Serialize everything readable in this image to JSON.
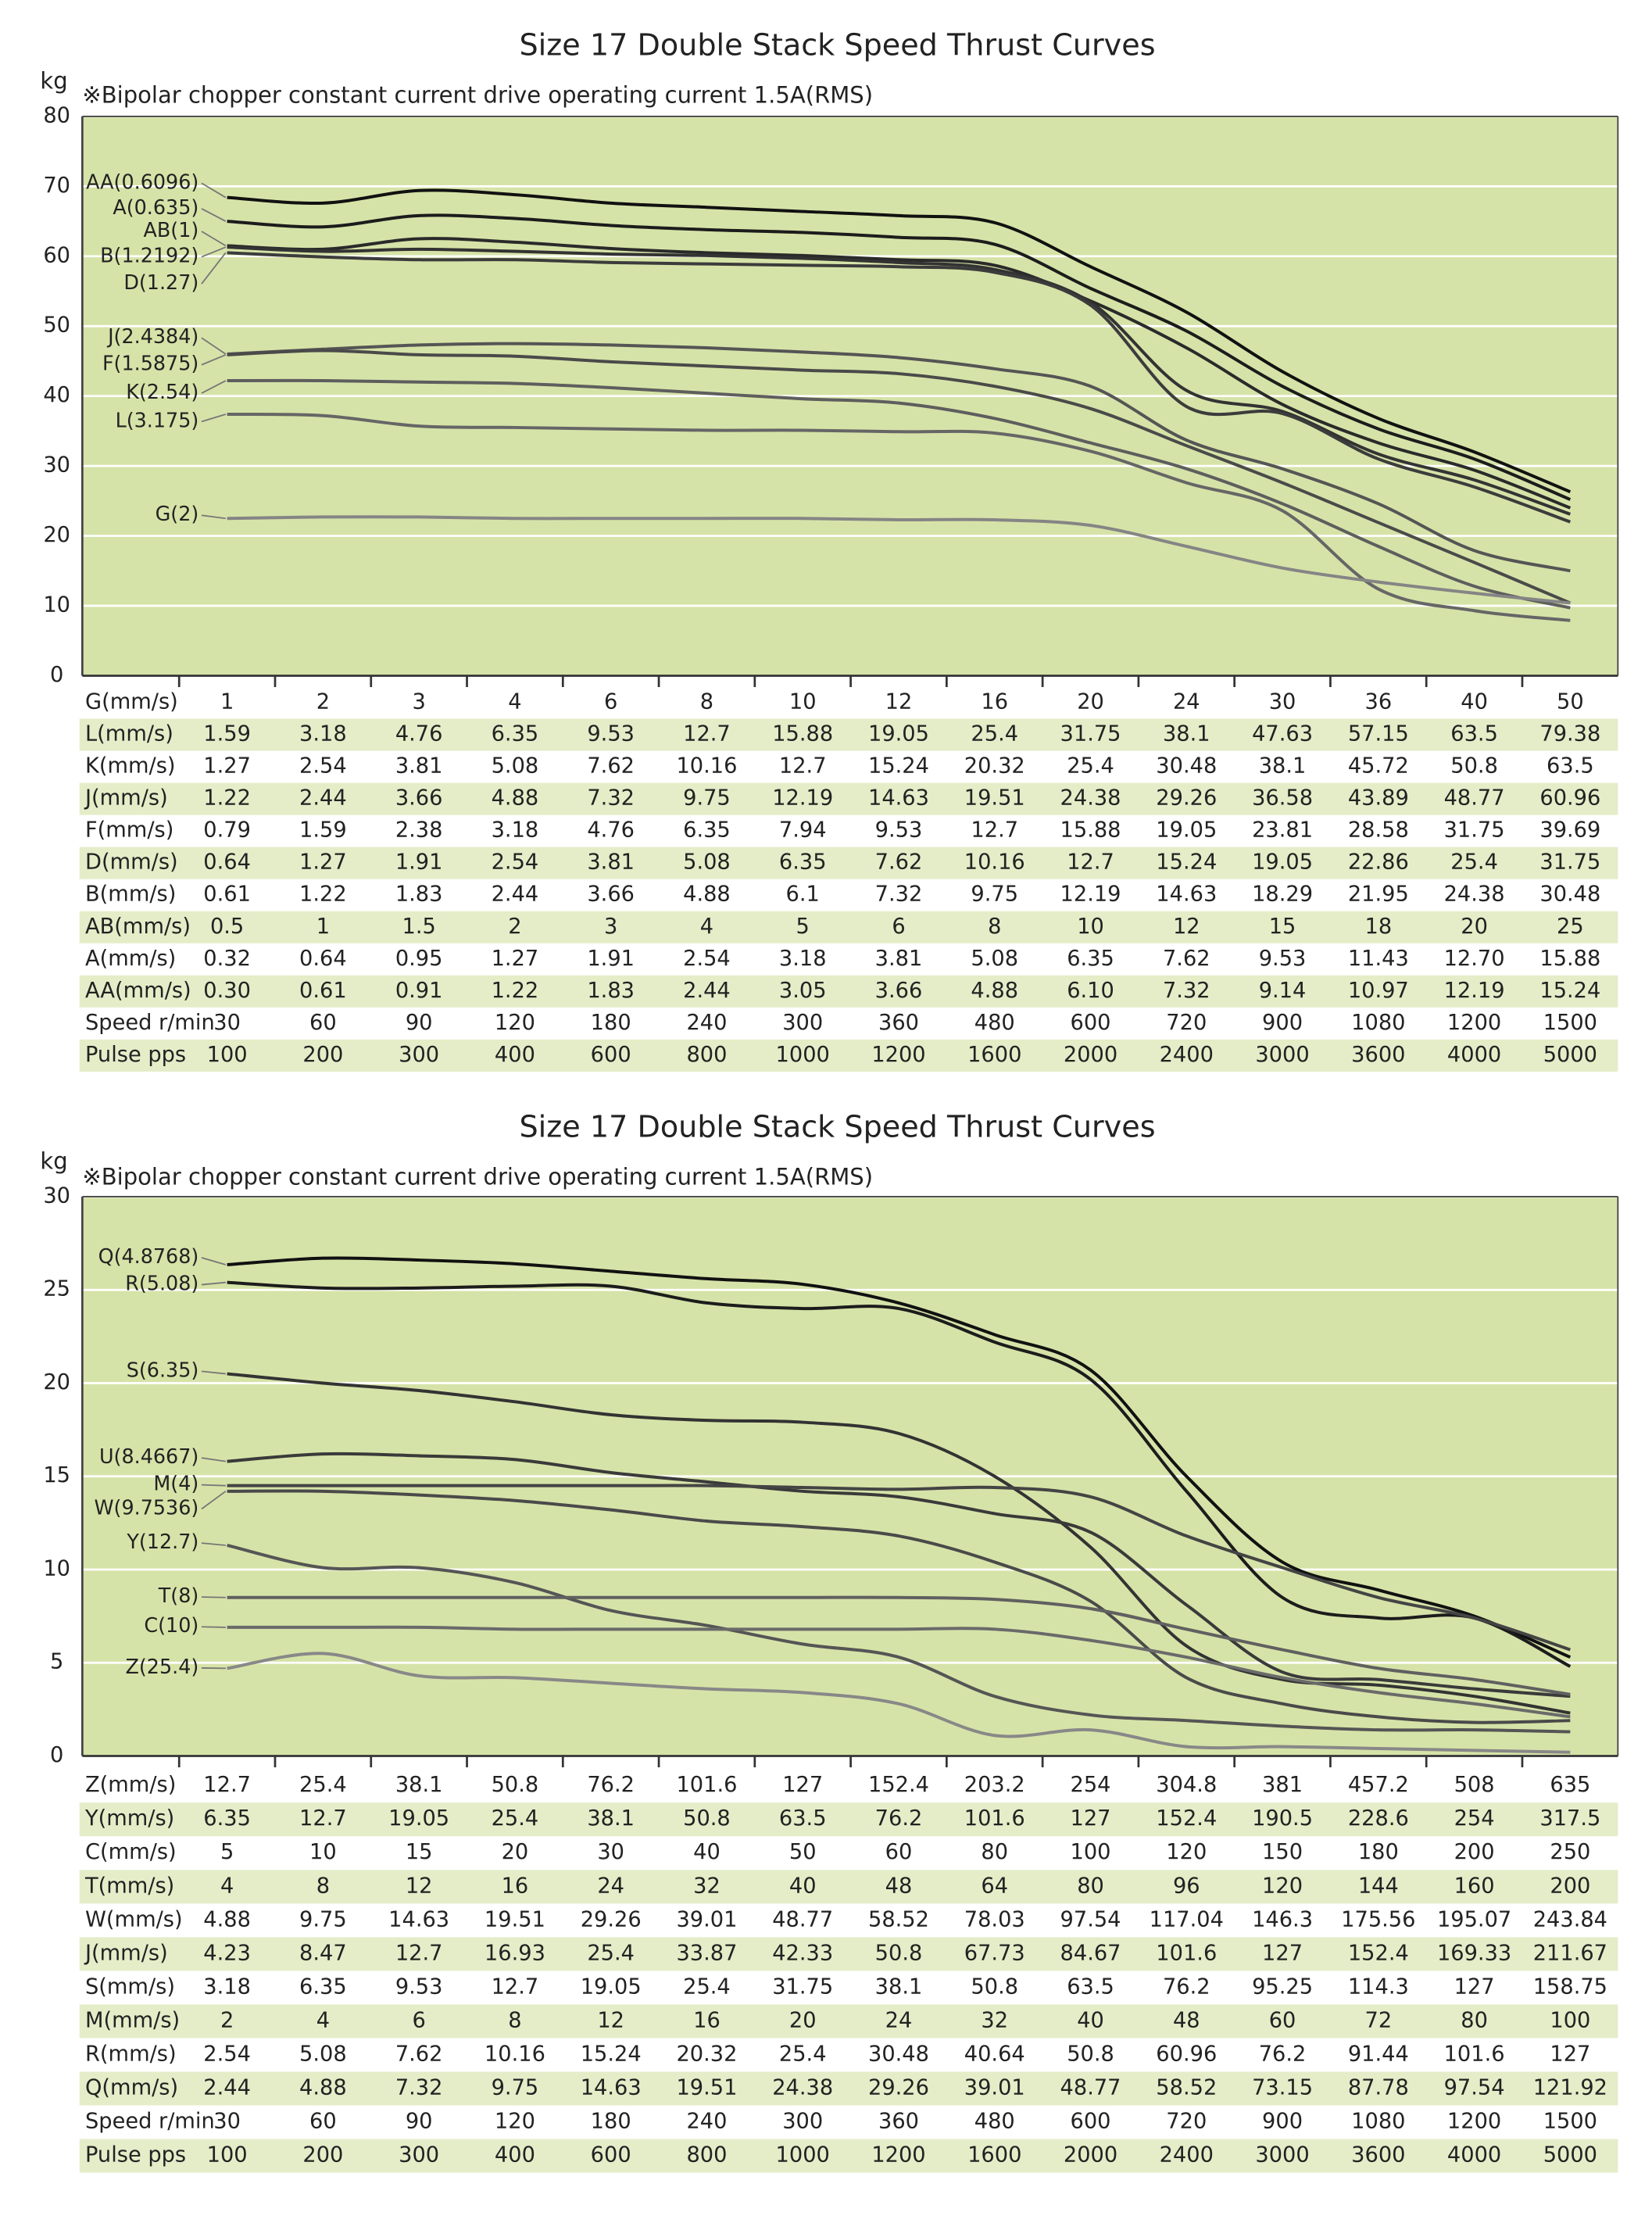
{
  "chart_data": [
    {
      "type": "line",
      "title": "Size 17 Double Stack Speed Thrust Curves",
      "subtitle": "※Bipolar chopper constant current drive operating current 1.5A(RMS)",
      "y_label": "kg",
      "ylim": [
        0,
        80
      ],
      "yticks": [
        0,
        10,
        20,
        30,
        40,
        50,
        60,
        70,
        80
      ],
      "grid": true,
      "series": [
        {
          "name": "AA(0.6096)",
          "color": "#111111",
          "values": [
            68.4,
            67.6,
            69.4,
            68.8,
            67.6,
            67,
            66.4,
            65.8,
            64.8,
            58.5,
            52,
            43.5,
            36.8,
            32,
            26.3
          ]
        },
        {
          "name": "A(0.635)",
          "color": "#1c1c1c",
          "values": [
            65,
            64.2,
            65.8,
            65.4,
            64.4,
            63.8,
            63.4,
            62.7,
            61.7,
            55.4,
            49.3,
            41.4,
            35.3,
            31,
            25.2
          ]
        },
        {
          "name": "AB(1)",
          "color": "#2a2a2a",
          "values": [
            61.5,
            61,
            62.5,
            62,
            61.1,
            60.5,
            60.1,
            59.5,
            58.7,
            53.6,
            46.9,
            38.8,
            33.3,
            29.4,
            24
          ]
        },
        {
          "name": "B(1.2192)",
          "color": "#333333",
          "values": [
            61.3,
            60.7,
            61,
            60.7,
            60.3,
            60.1,
            59.7,
            59.1,
            58.1,
            53.4,
            40.8,
            37.8,
            31.7,
            28,
            23.1
          ]
        },
        {
          "name": "D(1.27)",
          "color": "#3c3c3c",
          "values": [
            60.5,
            59.9,
            59.5,
            59.5,
            59.1,
            58.9,
            58.7,
            58.5,
            57.7,
            53,
            38.5,
            37.5,
            31,
            27,
            22
          ]
        },
        {
          "name": "J(2.4384)",
          "color": "#555555",
          "values": [
            46,
            46.7,
            47.3,
            47.5,
            47.3,
            46.9,
            46.3,
            45.5,
            43.9,
            41.4,
            33.7,
            29.6,
            24.6,
            17.9,
            15
          ]
        },
        {
          "name": "F(1.5875)",
          "color": "#4a4a4a",
          "values": [
            45.9,
            46.5,
            45.9,
            45.7,
            44.9,
            44.3,
            43.7,
            43.2,
            41.4,
            38.2,
            32.9,
            27.6,
            21.9,
            16.2,
            10.4
          ]
        },
        {
          "name": "K(2.54)",
          "color": "#5e5e5e",
          "values": [
            42.2,
            42.2,
            42,
            41.8,
            41.2,
            40.4,
            39.6,
            39,
            36.8,
            33.3,
            29.6,
            24.6,
            18.5,
            12.8,
            9.7
          ]
        },
        {
          "name": "L(3.175)",
          "color": "#666666",
          "values": [
            37.4,
            37.2,
            35.7,
            35.5,
            35.3,
            35.1,
            35.1,
            34.9,
            34.7,
            32.1,
            27.6,
            23.6,
            12.4,
            9.3,
            7.9
          ]
        },
        {
          "name": "G(2)",
          "color": "#858585",
          "values": [
            22.5,
            22.7,
            22.7,
            22.5,
            22.5,
            22.5,
            22.5,
            22.3,
            22.3,
            21.5,
            18.5,
            15.4,
            13.4,
            11.8,
            10.4
          ]
        }
      ],
      "table": {
        "rows": [
          {
            "label": "G(mm/s)",
            "values": [
              "1",
              "2",
              "3",
              "4",
              "6",
              "8",
              "10",
              "12",
              "16",
              "20",
              "24",
              "30",
              "36",
              "40",
              "50"
            ]
          },
          {
            "label": "L(mm/s)",
            "values": [
              "1.59",
              "3.18",
              "4.76",
              "6.35",
              "9.53",
              "12.7",
              "15.88",
              "19.05",
              "25.4",
              "31.75",
              "38.1",
              "47.63",
              "57.15",
              "63.5",
              "79.38"
            ]
          },
          {
            "label": "K(mm/s)",
            "values": [
              "1.27",
              "2.54",
              "3.81",
              "5.08",
              "7.62",
              "10.16",
              "12.7",
              "15.24",
              "20.32",
              "25.4",
              "30.48",
              "38.1",
              "45.72",
              "50.8",
              "63.5"
            ]
          },
          {
            "label": "J(mm/s)",
            "values": [
              "1.22",
              "2.44",
              "3.66",
              "4.88",
              "7.32",
              "9.75",
              "12.19",
              "14.63",
              "19.51",
              "24.38",
              "29.26",
              "36.58",
              "43.89",
              "48.77",
              "60.96"
            ]
          },
          {
            "label": "F(mm/s)",
            "values": [
              "0.79",
              "1.59",
              "2.38",
              "3.18",
              "4.76",
              "6.35",
              "7.94",
              "9.53",
              "12.7",
              "15.88",
              "19.05",
              "23.81",
              "28.58",
              "31.75",
              "39.69"
            ]
          },
          {
            "label": "D(mm/s)",
            "values": [
              "0.64",
              "1.27",
              "1.91",
              "2.54",
              "3.81",
              "5.08",
              "6.35",
              "7.62",
              "10.16",
              "12.7",
              "15.24",
              "19.05",
              "22.86",
              "25.4",
              "31.75"
            ]
          },
          {
            "label": "B(mm/s)",
            "values": [
              "0.61",
              "1.22",
              "1.83",
              "2.44",
              "3.66",
              "4.88",
              "6.1",
              "7.32",
              "9.75",
              "12.19",
              "14.63",
              "18.29",
              "21.95",
              "24.38",
              "30.48"
            ]
          },
          {
            "label": "AB(mm/s)",
            "values": [
              "0.5",
              "1",
              "1.5",
              "2",
              "3",
              "4",
              "5",
              "6",
              "8",
              "10",
              "12",
              "15",
              "18",
              "20",
              "25"
            ]
          },
          {
            "label": "A(mm/s)",
            "values": [
              "0.32",
              "0.64",
              "0.95",
              "1.27",
              "1.91",
              "2.54",
              "3.18",
              "3.81",
              "5.08",
              "6.35",
              "7.62",
              "9.53",
              "11.43",
              "12.70",
              "15.88"
            ]
          },
          {
            "label": "AA(mm/s)",
            "values": [
              "0.30",
              "0.61",
              "0.91",
              "1.22",
              "1.83",
              "2.44",
              "3.05",
              "3.66",
              "4.88",
              "6.10",
              "7.32",
              "9.14",
              "10.97",
              "12.19",
              "15.24"
            ]
          },
          {
            "label": "Speed r/min",
            "values": [
              "30",
              "60",
              "90",
              "120",
              "180",
              "240",
              "300",
              "360",
              "480",
              "600",
              "720",
              "900",
              "1080",
              "1200",
              "1500"
            ]
          },
          {
            "label": "Pulse pps",
            "values": [
              "100",
              "200",
              "300",
              "400",
              "600",
              "800",
              "1000",
              "1200",
              "1600",
              "2000",
              "2400",
              "3000",
              "3600",
              "4000",
              "5000"
            ]
          }
        ]
      }
    },
    {
      "type": "line",
      "title": "Size 17 Double Stack Speed Thrust Curves",
      "subtitle": "※Bipolar chopper constant current drive operating current 1.5A(RMS)",
      "y_label": "kg",
      "ylim": [
        0,
        30
      ],
      "yticks": [
        0,
        5,
        10,
        15,
        20,
        25,
        30
      ],
      "grid": true,
      "series": [
        {
          "name": "Q(4.8768)",
          "color": "#111111",
          "values": [
            26.35,
            26.7,
            26.6,
            26.4,
            26,
            25.6,
            25.3,
            24.3,
            22.6,
            20.7,
            15,
            10.4,
            8.9,
            7.5,
            5.3
          ]
        },
        {
          "name": "R(5.08)",
          "color": "#1c1c1c",
          "values": [
            25.4,
            25.1,
            25.1,
            25.2,
            25.2,
            24.3,
            24,
            24,
            22.2,
            20.2,
            14.2,
            8.5,
            7.4,
            7.4,
            4.8
          ]
        },
        {
          "name": "S(6.35)",
          "color": "#333333",
          "values": [
            20.5,
            20,
            19.6,
            19,
            18.3,
            18,
            17.9,
            17.3,
            15,
            11.2,
            5.9,
            4.1,
            3.8,
            3.2,
            2.3
          ]
        },
        {
          "name": "U(8.4667)",
          "color": "#3a3a3a",
          "values": [
            15.8,
            16.2,
            16.1,
            15.9,
            15.2,
            14.7,
            14.2,
            13.9,
            13,
            12,
            8.1,
            4.5,
            4.1,
            3.6,
            3.2
          ]
        },
        {
          "name": "M(4)",
          "color": "#444444",
          "values": [
            14.5,
            14.5,
            14.5,
            14.5,
            14.5,
            14.5,
            14.4,
            14.3,
            14.4,
            13.9,
            11.8,
            10.1,
            8.5,
            7.4,
            5.7
          ]
        },
        {
          "name": "W(9.7536)",
          "color": "#4a4a4a",
          "values": [
            14.2,
            14.2,
            14,
            13.7,
            13.2,
            12.6,
            12.3,
            11.8,
            10.4,
            8.3,
            4.2,
            2.8,
            2.1,
            1.8,
            1.9
          ]
        },
        {
          "name": "Y(12.7)",
          "color": "#555555",
          "values": [
            11.3,
            10.1,
            10.1,
            9.3,
            7.8,
            7,
            6,
            5.3,
            3.2,
            2.2,
            1.9,
            1.6,
            1.4,
            1.4,
            1.3
          ]
        },
        {
          "name": "T(8)",
          "color": "#606060",
          "values": [
            8.5,
            8.5,
            8.5,
            8.5,
            8.5,
            8.5,
            8.5,
            8.5,
            8.4,
            7.9,
            6.8,
            5.7,
            4.7,
            4.1,
            3.3
          ]
        },
        {
          "name": "C(10)",
          "color": "#6a6a6a",
          "values": [
            6.9,
            6.9,
            6.9,
            6.8,
            6.8,
            6.8,
            6.8,
            6.8,
            6.8,
            6.2,
            5.3,
            4.2,
            3.4,
            2.8,
            2.1
          ]
        },
        {
          "name": "Z(25.4)",
          "color": "#888888",
          "values": [
            4.7,
            5.5,
            4.3,
            4.2,
            3.9,
            3.6,
            3.4,
            2.8,
            1.1,
            1.4,
            0.5,
            0.5,
            0.4,
            0.3,
            0.2
          ]
        }
      ],
      "table": {
        "rows": [
          {
            "label": "Z(mm/s)",
            "values": [
              "12.7",
              "25.4",
              "38.1",
              "50.8",
              "76.2",
              "101.6",
              "127",
              "152.4",
              "203.2",
              "254",
              "304.8",
              "381",
              "457.2",
              "508",
              "635"
            ]
          },
          {
            "label": "Y(mm/s)",
            "values": [
              "6.35",
              "12.7",
              "19.05",
              "25.4",
              "38.1",
              "50.8",
              "63.5",
              "76.2",
              "101.6",
              "127",
              "152.4",
              "190.5",
              "228.6",
              "254",
              "317.5"
            ]
          },
          {
            "label": "C(mm/s)",
            "values": [
              "5",
              "10",
              "15",
              "20",
              "30",
              "40",
              "50",
              "60",
              "80",
              "100",
              "120",
              "150",
              "180",
              "200",
              "250"
            ]
          },
          {
            "label": "T(mm/s)",
            "values": [
              "4",
              "8",
              "12",
              "16",
              "24",
              "32",
              "40",
              "48",
              "64",
              "80",
              "96",
              "120",
              "144",
              "160",
              "200"
            ]
          },
          {
            "label": "W(mm/s)",
            "values": [
              "4.88",
              "9.75",
              "14.63",
              "19.51",
              "29.26",
              "39.01",
              "48.77",
              "58.52",
              "78.03",
              "97.54",
              "117.04",
              "146.3",
              "175.56",
              "195.07",
              "243.84"
            ]
          },
          {
            "label": "J(mm/s)",
            "values": [
              "4.23",
              "8.47",
              "12.7",
              "16.93",
              "25.4",
              "33.87",
              "42.33",
              "50.8",
              "67.73",
              "84.67",
              "101.6",
              "127",
              "152.4",
              "169.33",
              "211.67"
            ]
          },
          {
            "label": "S(mm/s)",
            "values": [
              "3.18",
              "6.35",
              "9.53",
              "12.7",
              "19.05",
              "25.4",
              "31.75",
              "38.1",
              "50.8",
              "63.5",
              "76.2",
              "95.25",
              "114.3",
              "127",
              "158.75"
            ]
          },
          {
            "label": "M(mm/s)",
            "values": [
              "2",
              "4",
              "6",
              "8",
              "12",
              "16",
              "20",
              "24",
              "32",
              "40",
              "48",
              "60",
              "72",
              "80",
              "100"
            ]
          },
          {
            "label": "R(mm/s)",
            "values": [
              "2.54",
              "5.08",
              "7.62",
              "10.16",
              "15.24",
              "20.32",
              "25.4",
              "30.48",
              "40.64",
              "50.8",
              "60.96",
              "76.2",
              "91.44",
              "101.6",
              "127"
            ]
          },
          {
            "label": "Q(mm/s)",
            "values": [
              "2.44",
              "4.88",
              "7.32",
              "9.75",
              "14.63",
              "19.51",
              "24.38",
              "29.26",
              "39.01",
              "48.77",
              "58.52",
              "73.15",
              "87.78",
              "97.54",
              "121.92"
            ]
          },
          {
            "label": "Speed r/min",
            "values": [
              "30",
              "60",
              "90",
              "120",
              "180",
              "240",
              "300",
              "360",
              "480",
              "600",
              "720",
              "900",
              "1080",
              "1200",
              "1500"
            ]
          },
          {
            "label": "Pulse pps",
            "values": [
              "100",
              "200",
              "300",
              "400",
              "600",
              "800",
              "1000",
              "1200",
              "1600",
              "2000",
              "2400",
              "3000",
              "3600",
              "4000",
              "5000"
            ]
          }
        ]
      }
    }
  ]
}
